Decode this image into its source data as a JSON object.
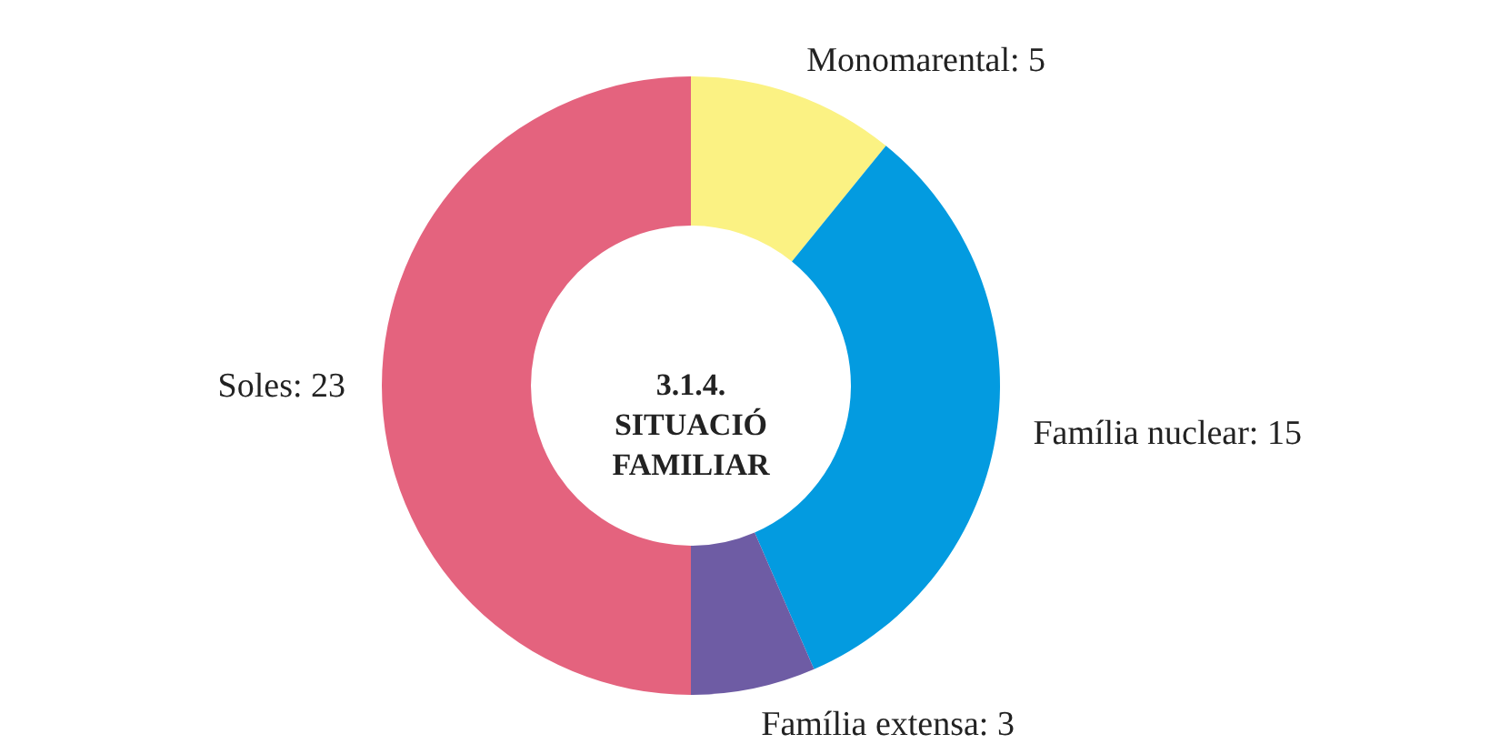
{
  "chart_data": {
    "type": "donut",
    "title": "3.1.4. SITUACIÓ FAMILIAR",
    "categories": [
      "Monomarental",
      "Família nuclear",
      "Família extensa",
      "Soles"
    ],
    "values": [
      5,
      15,
      3,
      23
    ],
    "value_labels": [
      ": 5",
      ": 15",
      ": 3",
      ": 23"
    ],
    "colors": [
      "#fbf283",
      "#039be0",
      "#6e5ca4",
      "#e4637e"
    ]
  }
}
